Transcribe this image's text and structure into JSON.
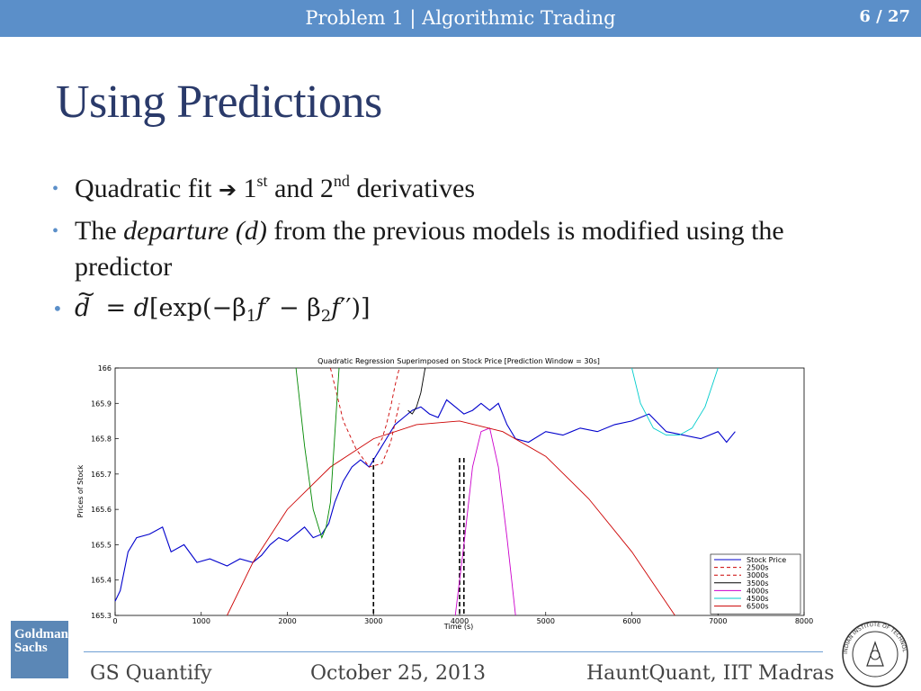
{
  "header": {
    "title": "Problem 1 | Algorithmic Trading",
    "page": "6 / 27"
  },
  "slide": {
    "title": "Using Predictions",
    "bullet1": {
      "a": "Quadratic fit",
      "b": "1",
      "b_sup": "st",
      "c": "and 2",
      "c_sup": "nd",
      "d": "derivatives"
    },
    "bullet2": {
      "a": "The",
      "em": "departure (d)",
      "b": "from the previous models is modified using the predictor"
    },
    "bullet3": {
      "lhs": "d",
      "eq": "=",
      "d": "d",
      "open": "[exp(−β",
      "sub1": "1",
      "f1": "f",
      "prime1": "′",
      "minus": " − β",
      "sub2": "2",
      "f2": "f",
      "prime2": "′′",
      "close": ")]"
    }
  },
  "footer": {
    "left": "GS Quantify",
    "center": "October 25, 2013",
    "right": "HauntQuant, IIT Madras"
  },
  "logos": {
    "gs_line1": "Goldman",
    "gs_line2": "Sachs",
    "iit_text": "INDIAN INSTITUTE OF TECHNOLOGY MADRAS"
  },
  "colors": {
    "header_bg": "#5b8fc9",
    "title": "#2a3a6a",
    "accent": "#5b8fc9"
  },
  "chart_data": {
    "type": "line",
    "title": "Quadratic Regression Superimposed on Stock Price [Prediction Window = 30s]",
    "xlabel": "Time (s)",
    "ylabel": "Prices of Stock",
    "xlim": [
      0,
      8000
    ],
    "ylim": [
      165.3,
      166
    ],
    "xticks": [
      "0",
      "1000",
      "2000",
      "3000",
      "4000",
      "5000",
      "6000",
      "7000",
      "8000"
    ],
    "yticks": [
      "165.3",
      "165.4",
      "165.5",
      "165.6",
      "165.7",
      "165.8",
      "165.9",
      "166"
    ],
    "legend_position": "bottom-right",
    "series": [
      {
        "name": "Stock Price",
        "color": "#0000cc",
        "style": "solid",
        "x": [
          0,
          60,
          150,
          250,
          400,
          550,
          650,
          800,
          950,
          1100,
          1300,
          1450,
          1600,
          1700,
          1800,
          1900,
          2000,
          2100,
          2200,
          2300,
          2400,
          2480,
          2550,
          2650,
          2750,
          2850,
          2950,
          3050,
          3150,
          3250,
          3350,
          3450,
          3550,
          3650,
          3750,
          3850,
          3950,
          4050,
          4150,
          4250,
          4350,
          4450,
          4550,
          4650,
          4800,
          5000,
          5200,
          5400,
          5600,
          5800,
          6000,
          6200,
          6400,
          6600,
          6800,
          7000,
          7100,
          7200
        ],
        "y": [
          165.34,
          165.37,
          165.48,
          165.52,
          165.53,
          165.55,
          165.48,
          165.5,
          165.45,
          165.46,
          165.44,
          165.46,
          165.45,
          165.47,
          165.5,
          165.52,
          165.51,
          165.53,
          165.55,
          165.52,
          165.53,
          165.56,
          165.62,
          165.68,
          165.72,
          165.74,
          165.72,
          165.76,
          165.8,
          165.84,
          165.86,
          165.88,
          165.89,
          165.87,
          165.86,
          165.91,
          165.89,
          165.87,
          165.88,
          165.9,
          165.88,
          165.9,
          165.84,
          165.8,
          165.79,
          165.82,
          165.81,
          165.83,
          165.82,
          165.84,
          165.85,
          165.87,
          165.82,
          165.81,
          165.8,
          165.82,
          165.79,
          165.82
        ]
      },
      {
        "name": "2500s",
        "color": "#cc0000",
        "style": "dashed",
        "x": [
          2500,
          2650,
          2800,
          2950,
          3100,
          3200,
          3300
        ],
        "y": [
          166.0,
          165.85,
          165.77,
          165.72,
          165.73,
          165.79,
          165.9
        ]
      },
      {
        "name": "3000s",
        "color": "#cc0000",
        "style": "dashed",
        "x": [
          3050,
          3100,
          3150,
          3200,
          3250,
          3300
        ],
        "y": [
          165.78,
          165.8,
          165.84,
          165.89,
          165.95,
          166.0
        ]
      },
      {
        "name": "3500s",
        "color": "#000000",
        "style": "solid",
        "x": [
          3400,
          3450,
          3500,
          3550,
          3600
        ],
        "y": [
          165.88,
          165.87,
          165.89,
          165.93,
          166.0
        ]
      },
      {
        "name": "4000s",
        "color": "#cc00cc",
        "style": "solid",
        "x": [
          3950,
          4050,
          4150,
          4250,
          4350,
          4450,
          4550,
          4650
        ],
        "y": [
          165.3,
          165.5,
          165.72,
          165.82,
          165.83,
          165.72,
          165.52,
          165.3
        ]
      },
      {
        "name": "4500s",
        "color": "#00cccc",
        "style": "solid",
        "x": [
          6000,
          6100,
          6250,
          6400,
          6550,
          6700,
          6850,
          7000
        ],
        "y": [
          166.0,
          165.9,
          165.83,
          165.81,
          165.81,
          165.83,
          165.89,
          166.0
        ]
      },
      {
        "name": "6500s",
        "color": "#cc0000",
        "style": "solid",
        "x": [
          1300,
          1600,
          2000,
          2500,
          3000,
          3500,
          4000,
          4500,
          5000,
          5500,
          6000,
          6500
        ],
        "y": [
          165.3,
          165.45,
          165.6,
          165.72,
          165.8,
          165.84,
          165.85,
          165.82,
          165.75,
          165.63,
          165.48,
          165.3
        ]
      },
      {
        "name": "green-fit",
        "color": "#008800",
        "style": "solid",
        "legend": false,
        "x": [
          2100,
          2200,
          2300,
          2400,
          2450,
          2500,
          2600
        ],
        "y": [
          166.0,
          165.78,
          165.6,
          165.52,
          165.55,
          165.62,
          166.0
        ]
      }
    ],
    "vlines": [
      3000,
      4000,
      4050
    ]
  }
}
